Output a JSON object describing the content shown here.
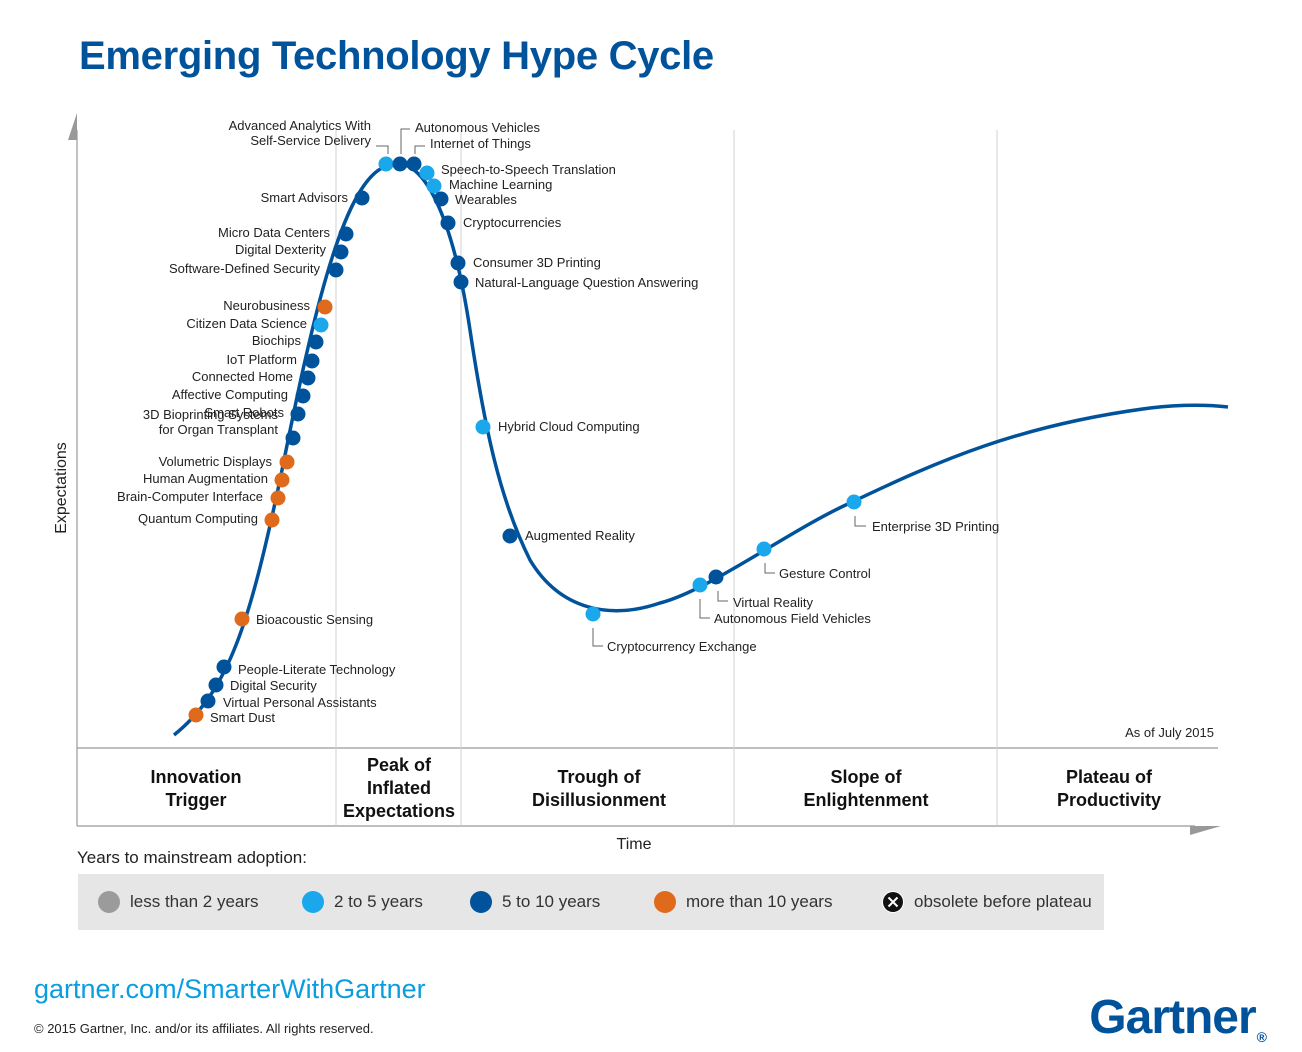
{
  "title": "Emerging Technology Hype Cycle",
  "axes": {
    "y_label": "Expectations",
    "x_label": "Time"
  },
  "as_of": "As of July 2015",
  "phases": [
    {
      "lines": [
        "Innovation",
        "Trigger"
      ]
    },
    {
      "lines": [
        "Peak of",
        "Inflated",
        "Expectations"
      ]
    },
    {
      "lines": [
        "Trough of",
        "Disillusionment"
      ]
    },
    {
      "lines": [
        "Slope of",
        "Enlightenment"
      ]
    },
    {
      "lines": [
        "Plateau of",
        "Productivity"
      ]
    }
  ],
  "colors": {
    "less_than_2": "#9b9b9b",
    "2_to_5": "#1aa7ec",
    "5_to_10": "#00539b",
    "more_than_10": "#e06a1b",
    "curve": "#00539b"
  },
  "technologies": [
    {
      "name": "Smart Dust",
      "cat": "more_than_10"
    },
    {
      "name": "Virtual Personal Assistants",
      "cat": "5_to_10"
    },
    {
      "name": "Digital Security",
      "cat": "5_to_10"
    },
    {
      "name": "People-Literate Technology",
      "cat": "5_to_10"
    },
    {
      "name": "Bioacoustic Sensing",
      "cat": "more_than_10"
    },
    {
      "name": "Quantum Computing",
      "cat": "more_than_10"
    },
    {
      "name": "Brain-Computer Interface",
      "cat": "more_than_10"
    },
    {
      "name": "Human Augmentation",
      "cat": "more_than_10"
    },
    {
      "name": "Volumetric Displays",
      "cat": "more_than_10"
    },
    {
      "name": "3D Bioprinting Systems\nfor Organ Transplant",
      "cat": "5_to_10"
    },
    {
      "name": "Smart Robots",
      "cat": "5_to_10"
    },
    {
      "name": "Affective Computing",
      "cat": "5_to_10"
    },
    {
      "name": "Connected Home",
      "cat": "5_to_10"
    },
    {
      "name": "IoT Platform",
      "cat": "5_to_10"
    },
    {
      "name": "Biochips",
      "cat": "5_to_10"
    },
    {
      "name": "Citizen Data Science",
      "cat": "2_to_5"
    },
    {
      "name": "Neurobusiness",
      "cat": "more_than_10"
    },
    {
      "name": "Software-Defined Security",
      "cat": "5_to_10"
    },
    {
      "name": "Digital Dexterity",
      "cat": "5_to_10"
    },
    {
      "name": "Micro Data Centers",
      "cat": "5_to_10"
    },
    {
      "name": "Smart Advisors",
      "cat": "5_to_10"
    },
    {
      "name": "Advanced Analytics With\nSelf-Service Delivery",
      "cat": "2_to_5"
    },
    {
      "name": "Autonomous Vehicles",
      "cat": "5_to_10"
    },
    {
      "name": "Internet of Things",
      "cat": "5_to_10"
    },
    {
      "name": "Speech-to-Speech Translation",
      "cat": "2_to_5"
    },
    {
      "name": "Machine Learning",
      "cat": "2_to_5"
    },
    {
      "name": "Wearables",
      "cat": "5_to_10"
    },
    {
      "name": "Cryptocurrencies",
      "cat": "5_to_10"
    },
    {
      "name": "Consumer 3D Printing",
      "cat": "5_to_10"
    },
    {
      "name": "Natural-Language Question Answering",
      "cat": "5_to_10"
    },
    {
      "name": "Hybrid Cloud Computing",
      "cat": "2_to_5"
    },
    {
      "name": "Augmented Reality",
      "cat": "5_to_10"
    },
    {
      "name": "Cryptocurrency Exchange",
      "cat": "2_to_5"
    },
    {
      "name": "Autonomous Field Vehicles",
      "cat": "2_to_5"
    },
    {
      "name": "Virtual Reality",
      "cat": "5_to_10"
    },
    {
      "name": "Gesture Control",
      "cat": "2_to_5"
    },
    {
      "name": "Enterprise 3D Printing",
      "cat": "2_to_5"
    }
  ],
  "legend": {
    "title": "Years to mainstream adoption:",
    "items": [
      {
        "label": "less than 2 years",
        "cat": "less_than_2"
      },
      {
        "label": "2 to 5 years",
        "cat": "2_to_5"
      },
      {
        "label": "5 to 10 years",
        "cat": "5_to_10"
      },
      {
        "label": "more than 10 years",
        "cat": "more_than_10"
      },
      {
        "label": "obsolete before plateau",
        "cat": "obsolete"
      }
    ]
  },
  "footer": {
    "site": "gartner.com/SmarterWithGartner",
    "copyright": "© 2015 Gartner, Inc. and/or its affiliates. All rights reserved.",
    "logo": "Gartner",
    "logo_mark": "®"
  }
}
